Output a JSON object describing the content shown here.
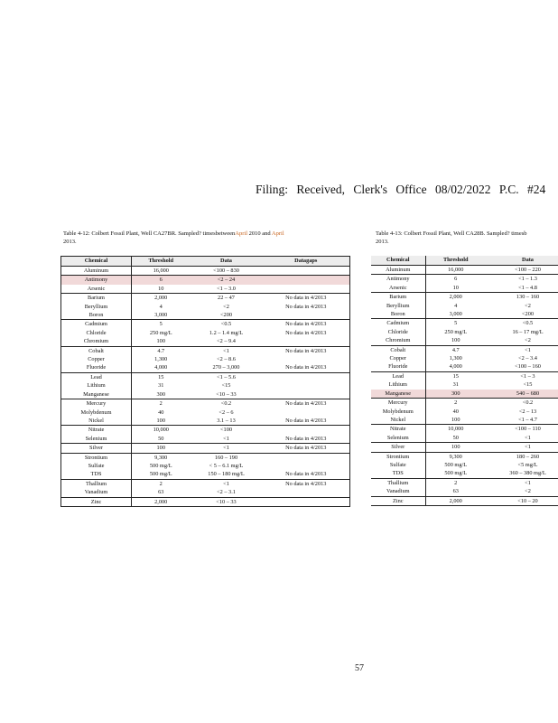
{
  "header": {
    "filing": "Filing:  Received,  Clerk's  Office  08/02/2022  P.C.  #24"
  },
  "left_table": {
    "caption_line1": "Table 4-12: Colbert Fossil Plant, Well CA27BR. Sampled? timesbetween",
    "caption_april1": "April",
    "caption_mid": " 2010 and ",
    "caption_april2": "April",
    "caption_line2": "2013.",
    "columns": [
      "Chemical",
      "Threshold",
      "Data",
      "Datagaps"
    ],
    "groups": [
      [
        [
          "Aluminum",
          "16,000",
          "<100  – 830",
          ""
        ]
      ],
      [
        [
          "Antimony",
          "6",
          "<2  – 24",
          "",
          true
        ],
        [
          "Arsenic",
          "10",
          "<1  – 3.0",
          ""
        ]
      ],
      [
        [
          "Barium",
          "2,000",
          "22  – 47",
          "No data in 4/2013"
        ],
        [
          "Beryllium",
          "4",
          "<2",
          "No data in 4/2013"
        ],
        [
          "Boron",
          "3,000",
          "<200",
          ""
        ]
      ],
      [
        [
          "Cadmium",
          "5",
          "<0.5",
          "No data in 4/2013"
        ],
        [
          "Chloride",
          "250 mg/L",
          "1.2  – 1.4 mg/L",
          "No data in 4/2013"
        ],
        [
          "Chromium",
          "100",
          "<2  – 9.4",
          ""
        ]
      ],
      [
        [
          "Cobalt",
          "4.7",
          "<1",
          "No data in 4/2013"
        ],
        [
          "Copper",
          "1,300",
          "<2  – 8.6",
          ""
        ],
        [
          "Fluoride",
          "4,000",
          "270  – 3,000",
          "No data in 4/2013"
        ]
      ],
      [
        [
          "Lead",
          "15",
          "<1  – 5.6",
          ""
        ],
        [
          "Lithium",
          "31",
          "<15",
          ""
        ],
        [
          "Manganese",
          "300",
          "<10  – 33",
          ""
        ]
      ],
      [
        [
          "Mercury",
          "2",
          "<0.2",
          "No data in 4/2013"
        ],
        [
          "Molybdenum",
          "40",
          "<2  – 6",
          ""
        ],
        [
          "Nickel",
          "100",
          "3.1  – 13",
          "No data in 4/2013"
        ]
      ],
      [
        [
          "Nitrate",
          "10,000",
          "<100",
          ""
        ],
        [
          "Selenium",
          "50",
          "<1",
          "No data in 4/2013"
        ]
      ],
      [
        [
          "Silver",
          "100",
          "<1",
          "No data in 4/2013"
        ]
      ],
      [
        [
          "Strontium",
          "9,300",
          "160  – 190",
          ""
        ],
        [
          "Sulfate",
          "500 mg/L",
          "< 5 – 6.1 mg/L",
          ""
        ],
        [
          "TDS",
          "500 mg/L",
          "150  – 180 mg/L",
          "No data in 4/2013"
        ]
      ],
      [
        [
          "Thallium",
          "2",
          "<1",
          "No data in 4/2013"
        ],
        [
          "Vanadium",
          "63",
          "<2  – 3.1",
          ""
        ]
      ],
      [
        [
          "Zinc",
          "2,000",
          "<10  – 33",
          ""
        ]
      ]
    ]
  },
  "right_table": {
    "caption_line1": "Table 4-13: Colbert Fossil Plant, Well CA28B. Sampled? timesb",
    "caption_line2": "2013.",
    "columns": [
      "Chemical",
      "Threshold",
      "Data"
    ],
    "groups": [
      [
        [
          "Aluminum",
          "16,000",
          "<100  – 220"
        ]
      ],
      [
        [
          "Antimony",
          "6",
          "<1  – 1.3"
        ],
        [
          "Arsenic",
          "10",
          "<1  – 4.8"
        ]
      ],
      [
        [
          "Barium",
          "2,000",
          "130  – 160"
        ],
        [
          "Beryllium",
          "4",
          "<2"
        ],
        [
          "Boron",
          "3,000",
          "<200"
        ]
      ],
      [
        [
          "Cadmium",
          "5",
          "<0.5"
        ],
        [
          "Chloride",
          "250 mg/L",
          "16  – 17 mg/L"
        ],
        [
          "Chromium",
          "100",
          "<2"
        ]
      ],
      [
        [
          "Cobalt",
          "4.7",
          "<1"
        ],
        [
          "Copper",
          "1,300",
          "<2  – 3.4"
        ],
        [
          "Fluoride",
          "4,000",
          "<100  – 160"
        ]
      ],
      [
        [
          "Lead",
          "15",
          "<1  – 3"
        ],
        [
          "Lithium",
          "31",
          "<15"
        ],
        [
          "Manganese",
          "300",
          "540  – 680",
          true
        ]
      ],
      [
        [
          "Mercury",
          "2",
          "<0.2"
        ],
        [
          "Molybdenum",
          "40",
          "<2 – 13"
        ],
        [
          "Nickel",
          "100",
          "<1  – 4.7"
        ]
      ],
      [
        [
          "Nitrate",
          "10,000",
          "<100  – 110"
        ],
        [
          "Selenium",
          "50",
          "<1"
        ]
      ],
      [
        [
          "Silver",
          "100",
          "<1"
        ]
      ],
      [
        [
          "Strontium",
          "9,300",
          "180  – 260"
        ],
        [
          "Sulfate",
          "500 mg/L",
          "<5 mg/L"
        ],
        [
          "TDS",
          "500 mg/L",
          "360  – 380 mg/L"
        ]
      ],
      [
        [
          "Thallium",
          "2",
          "<1"
        ],
        [
          "Vanadium",
          "63",
          "<2"
        ]
      ],
      [
        [
          "Zinc",
          "2,000",
          "<10  – 20"
        ]
      ]
    ]
  },
  "footer": {
    "page_number": "57"
  },
  "colors": {
    "highlight": "#f1d9d9",
    "header_bg": "#ededed",
    "accent_text": "#c8641e"
  }
}
